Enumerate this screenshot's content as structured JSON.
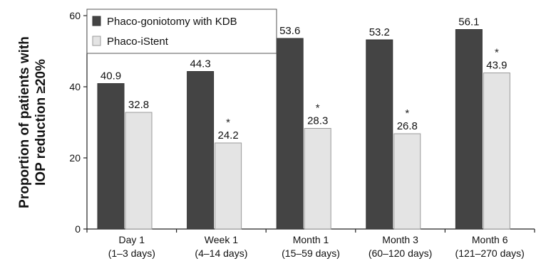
{
  "chart_data": {
    "type": "bar",
    "categories": [
      [
        "Day 1",
        "(1–3 days)"
      ],
      [
        "Week 1",
        "(4–14 days)"
      ],
      [
        "Month 1",
        "(15–59 days)"
      ],
      [
        "Month 3",
        "(60–120 days)"
      ],
      [
        "Month 6",
        "(121–270 days)"
      ]
    ],
    "series": [
      {
        "name": "Phaco-goniotomy with KDB",
        "values": [
          40.9,
          44.3,
          53.6,
          53.2,
          56.1
        ],
        "value_labels": [
          "40.9",
          "44.3",
          "53.6",
          "53.2",
          "56.1"
        ],
        "color": "#444444"
      },
      {
        "name": "Phaco-iStent",
        "values": [
          32.8,
          24.2,
          28.3,
          26.8,
          43.9
        ],
        "value_labels": [
          "32.8",
          "24.2",
          "28.3",
          "26.8",
          "43.9"
        ],
        "color": "#e4e4e4",
        "significance": [
          "",
          "*",
          "*",
          "*",
          "*"
        ]
      }
    ],
    "ylabel": [
      "Proportion of patients with",
      "IOP reduction ≥20%"
    ],
    "xlabel": "",
    "ylim": [
      0,
      60
    ],
    "yticks": [
      0,
      20,
      40,
      60
    ],
    "grid": false,
    "legend_position": "top-left"
  }
}
